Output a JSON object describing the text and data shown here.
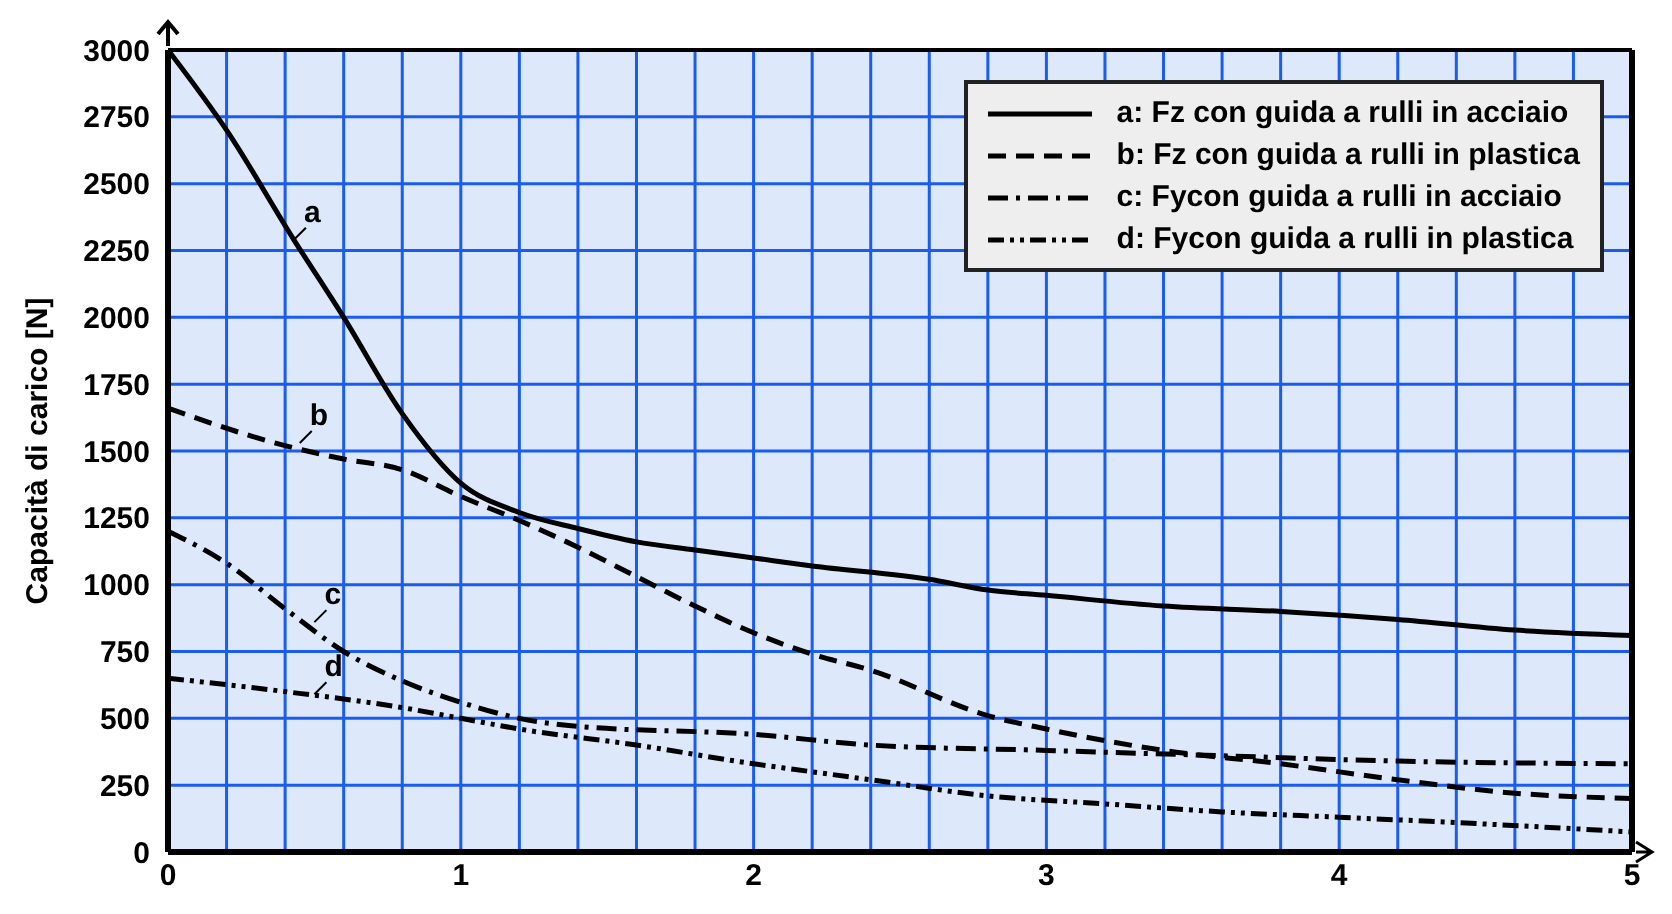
{
  "chart_data": {
    "type": "line",
    "ylabel": "Capacità di carico [N]",
    "xlim": [
      0,
      5
    ],
    "ylim": [
      0,
      3000
    ],
    "xticks": [
      0,
      {
        "value": 0.2,
        "label": null
      },
      {
        "value": 0.4,
        "label": null
      },
      {
        "value": 0.6,
        "label": null
      },
      {
        "value": 0.8,
        "label": null
      },
      1,
      {
        "value": 1.2,
        "label": null
      },
      {
        "value": 1.4,
        "label": null
      },
      {
        "value": 1.6,
        "label": null
      },
      {
        "value": 1.8,
        "label": null
      },
      2,
      {
        "value": 2.2,
        "label": null
      },
      {
        "value": 2.4,
        "label": null
      },
      {
        "value": 2.6,
        "label": null
      },
      {
        "value": 2.8,
        "label": null
      },
      3,
      {
        "value": 3.2,
        "label": null
      },
      {
        "value": 3.4,
        "label": null
      },
      {
        "value": 3.6,
        "label": null
      },
      {
        "value": 3.8,
        "label": null
      },
      4,
      {
        "value": 4.2,
        "label": null
      },
      {
        "value": 4.4,
        "label": null
      },
      {
        "value": 4.6,
        "label": null
      },
      {
        "value": 4.8,
        "label": null
      },
      5
    ],
    "yticks": [
      0,
      250,
      500,
      750,
      1000,
      1250,
      1500,
      1750,
      2000,
      2250,
      2500,
      2750,
      3000
    ],
    "grid": true,
    "legend": "top right",
    "marker": "none",
    "series": [
      {
        "name": "a: Fz con guida a rulli in acciaio",
        "color": "#000000",
        "line_style": "solid",
        "x": [
          0,
          0.2,
          0.43,
          0.6,
          0.8,
          1.0,
          1.2,
          1.4,
          1.6,
          1.8,
          2.0,
          2.2,
          2.6,
          2.8,
          3.0,
          3.4,
          3.8,
          4.2,
          4.6,
          5.0
        ],
        "values": [
          3000,
          2700,
          2290,
          2000,
          1640,
          1380,
          1270,
          1210,
          1160,
          1130,
          1100,
          1070,
          1020,
          980,
          960,
          920,
          900,
          870,
          830,
          810
        ]
      },
      {
        "name": "b: Fz con guida a rulli in plastica",
        "color": "#000000",
        "line_style": "dashed",
        "x": [
          0,
          0.4,
          0.6,
          0.8,
          1.0,
          1.2,
          1.4,
          1.6,
          1.8,
          2.0,
          2.2,
          2.4,
          2.8,
          3.0,
          3.4,
          3.8,
          4.2,
          4.6,
          5.0
        ],
        "values": [
          1660,
          1520,
          1470,
          1430,
          1330,
          1240,
          1140,
          1030,
          920,
          820,
          740,
          680,
          510,
          460,
          380,
          330,
          270,
          220,
          200
        ]
      },
      {
        "name": "c: Fycon guida a rulli in acciaio",
        "color": "#000000",
        "line_style": "dashed",
        "x": [
          0,
          0.2,
          0.4,
          0.6,
          0.8,
          1.0,
          1.2,
          1.4,
          2.0,
          2.4,
          3.0,
          3.6,
          4.2,
          5.0
        ],
        "values": [
          1200,
          1080,
          910,
          750,
          640,
          560,
          500,
          470,
          440,
          400,
          380,
          360,
          340,
          330
        ]
      },
      {
        "name": "d: Fycon guida a rulli in plastica",
        "color": "#000000",
        "line_style": "dotted",
        "x": [
          0,
          0.4,
          0.8,
          1.0,
          1.2,
          1.6,
          2.0,
          2.2,
          2.4,
          2.8,
          3.2,
          3.6,
          4.0,
          4.4,
          5.0
        ],
        "values": [
          650,
          600,
          540,
          500,
          460,
          400,
          330,
          300,
          270,
          210,
          180,
          150,
          130,
          110,
          75
        ]
      }
    ],
    "annotations": [
      {
        "text": "a",
        "x": 0.43,
        "y": 2290
      },
      {
        "text": "b",
        "x": 0.45,
        "y": 1530
      },
      {
        "text": "c",
        "x": 0.5,
        "y": 860
      },
      {
        "text": "d",
        "x": 0.5,
        "y": 590
      }
    ]
  }
}
